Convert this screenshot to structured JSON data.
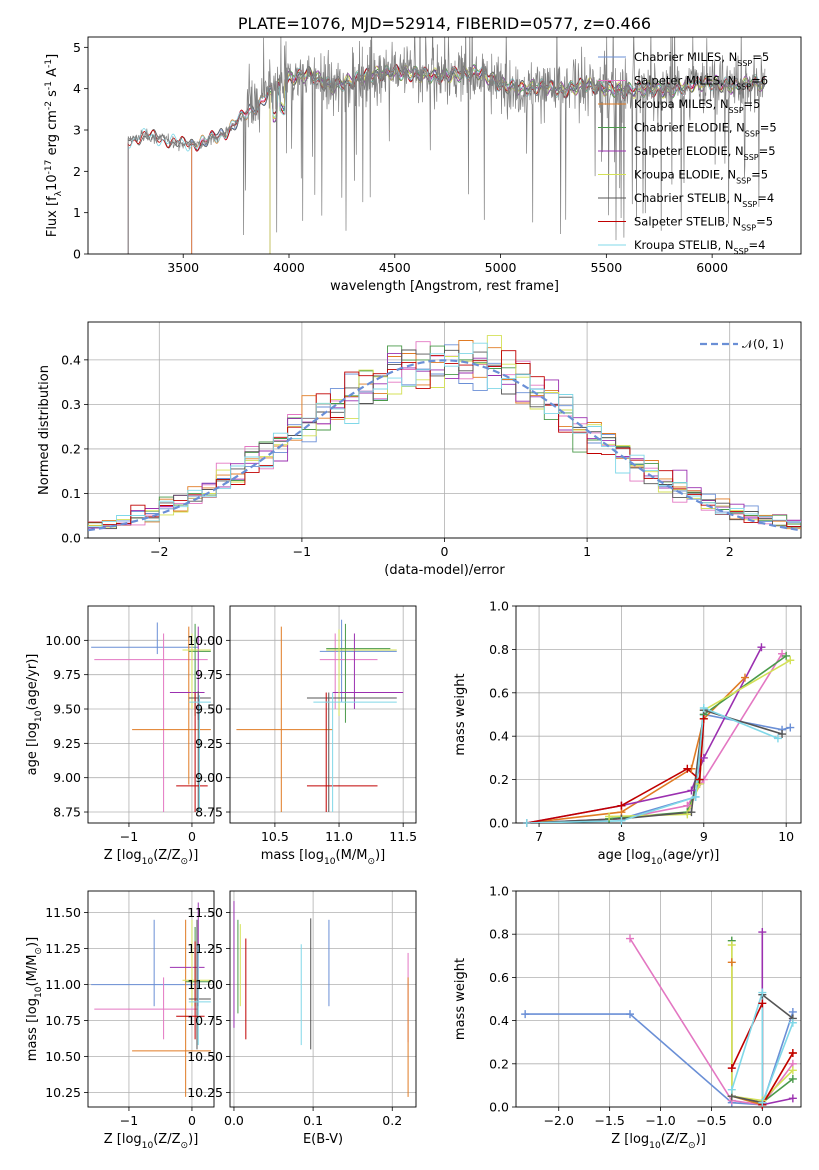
{
  "chart_data": [
    {
      "id": "spectrum",
      "type": "line",
      "title": "PLATE=1076, MJD=52914, FIBERID=0577, z=0.466",
      "xlabel": "wavelength [Angstrom, rest frame]",
      "ylabel": "Flux [f$_\\lambda$10$^{-17}$ erg cm$^{-2}$ s$^{-1}$ A$^{-1}$]",
      "xlim": [
        3050,
        6420
      ],
      "ylim": [
        0,
        5.25
      ],
      "xticks": [
        3500,
        4000,
        4500,
        5000,
        5500,
        6000
      ],
      "yticks": [
        0,
        1,
        2,
        3,
        4,
        5
      ],
      "grid": false,
      "legend_position": "top-right",
      "data_color": "#7f7f7f",
      "continuum": [
        [
          3240,
          2.75
        ],
        [
          3300,
          2.85
        ],
        [
          3400,
          2.8
        ],
        [
          3500,
          2.65
        ],
        [
          3600,
          2.7
        ],
        [
          3700,
          2.95
        ],
        [
          3800,
          3.4
        ],
        [
          3850,
          3.6
        ],
        [
          3900,
          3.85
        ],
        [
          3950,
          4.05
        ],
        [
          4000,
          4.25
        ],
        [
          4100,
          4.35
        ],
        [
          4200,
          4.05
        ],
        [
          4300,
          4.2
        ],
        [
          4400,
          4.35
        ],
        [
          4500,
          4.4
        ],
        [
          4600,
          4.35
        ],
        [
          4700,
          4.3
        ],
        [
          4800,
          4.35
        ],
        [
          4900,
          4.4
        ],
        [
          5000,
          4.1
        ],
        [
          5100,
          4.0
        ],
        [
          5200,
          4.05
        ],
        [
          5300,
          3.95
        ],
        [
          5400,
          4.1
        ],
        [
          5500,
          4.0
        ],
        [
          5600,
          3.95
        ],
        [
          5700,
          4.0
        ],
        [
          5800,
          3.95
        ],
        [
          5900,
          4.1
        ],
        [
          6000,
          4.15
        ],
        [
          6100,
          4.05
        ],
        [
          6200,
          4.15
        ],
        [
          6250,
          4.1
        ]
      ],
      "series": [
        {
          "name": "Chabrier MILES, N$_{SSP}$=5",
          "color": "#6a8fd6",
          "start": 3540
        },
        {
          "name": "Salpeter MILES, N$_{SSP}$=6",
          "color": "#e377c2",
          "start": 3540
        },
        {
          "name": "Kroupa MILES, N$_{SSP}$=5",
          "color": "#e07b24",
          "start": 3540
        },
        {
          "name": "Chabrier ELODIE, N$_{SSP}$=5",
          "color": "#4a9a4a",
          "start": 3910
        },
        {
          "name": "Salpeter ELODIE, N$_{SSP}$=5",
          "color": "#9b30b0",
          "start": 3910
        },
        {
          "name": "Kroupa ELODIE, N$_{SSP}$=5",
          "color": "#d4e157",
          "start": 3910
        },
        {
          "name": "Chabrier STELIB, N$_{SSP}$=4",
          "color": "#555555",
          "start": 3240
        },
        {
          "name": "Salpeter STELIB, N$_{SSP}$=5",
          "color": "#c00000",
          "start": 3240
        },
        {
          "name": "Kroupa STELIB, N$_{SSP}$=4",
          "color": "#80d8e8",
          "start": 3240
        }
      ]
    },
    {
      "id": "residuals",
      "type": "line",
      "xlabel": "(data-model)/error",
      "ylabel": "Normed distribution",
      "xlim": [
        -2.5,
        2.5
      ],
      "ylim": [
        0,
        0.485
      ],
      "xticks": [
        -2,
        -1,
        0,
        1,
        2
      ],
      "yticks": [
        0.0,
        0.1,
        0.2,
        0.3,
        0.4
      ],
      "grid": true,
      "legend_position": "top-right",
      "gaussian": {
        "label": "$\\mathcal{N}(0,1)$",
        "mean": 0,
        "sigma": 1,
        "color": "#6a8fd6"
      },
      "bins": {
        "start": -2.5,
        "width": 0.1,
        "count": 50
      }
    },
    {
      "id": "age-vs-Z",
      "type": "scatter",
      "xlabel": "Z [log$_{10}$(Z/Z$_\\odot$)]",
      "ylabel": "age  [log$_{10}$(age/yr)]",
      "xlim": [
        -1.65,
        0.35
      ],
      "ylim": [
        8.67,
        10.25
      ],
      "xticks": [
        -1,
        0
      ],
      "yticks": [
        8.75,
        9.0,
        9.25,
        9.5,
        9.75,
        10.0
      ],
      "grid": true,
      "points": [
        {
          "x": -0.55,
          "y": 9.95,
          "xlo": -1.6,
          "xhi": 0.1,
          "ylo": 9.9,
          "yhi": 10.13
        },
        {
          "x": -0.45,
          "y": 9.86,
          "xlo": -1.55,
          "xhi": 0.25,
          "ylo": 8.75,
          "yhi": 10.05
        },
        {
          "x": -0.05,
          "y": 9.35,
          "xlo": -0.95,
          "xhi": 0.3,
          "ylo": 8.95,
          "yhi": 10.1
        },
        {
          "x": 0.05,
          "y": 9.92,
          "xlo": -0.05,
          "xhi": 0.3,
          "ylo": 9.45,
          "yhi": 10.12
        },
        {
          "x": 0.1,
          "y": 9.62,
          "xlo": -0.35,
          "xhi": 0.2,
          "ylo": 9.42,
          "yhi": 10.1
        },
        {
          "x": 0.0,
          "y": 9.93,
          "xlo": -0.15,
          "xhi": 0.3,
          "ylo": 9.5,
          "yhi": 10.05
        },
        {
          "x": 0.1,
          "y": 9.58,
          "xlo": -0.05,
          "xhi": 0.3,
          "ylo": 8.75,
          "yhi": 9.63
        },
        {
          "x": 0.05,
          "y": 8.94,
          "xlo": -0.25,
          "xhi": 0.25,
          "ylo": 8.75,
          "yhi": 9.62
        },
        {
          "x": 0.12,
          "y": 9.55,
          "xlo": -0.05,
          "xhi": 0.3,
          "ylo": 8.75,
          "yhi": 9.6
        }
      ]
    },
    {
      "id": "age-vs-mass",
      "type": "scatter",
      "xlabel": "mass [log$_{10}$(M/M$_\\odot$)]",
      "ylabel": "",
      "xlim": [
        10.15,
        11.6
      ],
      "ylim": [
        8.67,
        10.25
      ],
      "xticks": [
        10.5,
        11.0,
        11.5
      ],
      "yticks": [
        8.75,
        9.0,
        9.25,
        9.5,
        9.75,
        10.0
      ],
      "grid": true,
      "points": [
        {
          "x": 11.02,
          "y": 9.92,
          "xlo": 10.85,
          "xhi": 11.45,
          "ylo": 9.55,
          "yhi": 10.15
        },
        {
          "x": 10.97,
          "y": 9.86,
          "xlo": 10.85,
          "xhi": 11.3,
          "ylo": 9.5,
          "yhi": 10.05
        },
        {
          "x": 10.55,
          "y": 9.35,
          "xlo": 10.2,
          "xhi": 10.95,
          "ylo": 8.75,
          "yhi": 10.1
        },
        {
          "x": 11.05,
          "y": 9.94,
          "xlo": 10.9,
          "xhi": 11.4,
          "ylo": 9.4,
          "yhi": 10.12
        },
        {
          "x": 11.12,
          "y": 9.62,
          "xlo": 10.95,
          "xhi": 11.5,
          "ylo": 9.5,
          "yhi": 10.05
        },
        {
          "x": 11.0,
          "y": 9.93,
          "xlo": 10.9,
          "xhi": 11.45,
          "ylo": 9.45,
          "yhi": 10.08
        },
        {
          "x": 10.92,
          "y": 9.58,
          "xlo": 10.75,
          "xhi": 11.45,
          "ylo": 8.75,
          "yhi": 9.62
        },
        {
          "x": 10.9,
          "y": 8.94,
          "xlo": 10.75,
          "xhi": 11.3,
          "ylo": 8.75,
          "yhi": 9.62
        },
        {
          "x": 10.95,
          "y": 9.55,
          "xlo": 10.8,
          "xhi": 11.45,
          "ylo": 8.75,
          "yhi": 9.62
        }
      ]
    },
    {
      "id": "weight-vs-age",
      "type": "line",
      "xlabel": "age  [log$_{10}$(age/yr)]",
      "ylabel": "mass weight",
      "xlim": [
        6.72,
        10.18
      ],
      "ylim": [
        0,
        1.0
      ],
      "xticks": [
        7,
        8,
        9,
        10
      ],
      "yticks": [
        0.0,
        0.2,
        0.4,
        0.6,
        0.8,
        1.0
      ],
      "grid": true,
      "series": [
        {
          "color": "#6a8fd6",
          "x": [
            6.85,
            8.0,
            8.9,
            9.0,
            9.95,
            10.05
          ],
          "y": [
            0.0,
            0.02,
            0.12,
            0.5,
            0.43,
            0.44
          ]
        },
        {
          "color": "#e377c2",
          "x": [
            6.85,
            8.0,
            8.8,
            9.0,
            9.95
          ],
          "y": [
            0.0,
            0.02,
            0.08,
            0.2,
            0.78
          ]
        },
        {
          "color": "#e07b24",
          "x": [
            6.85,
            8.0,
            8.85,
            9.0,
            9.5
          ],
          "y": [
            0.0,
            0.05,
            0.25,
            0.48,
            0.67
          ]
        },
        {
          "color": "#4a9a4a",
          "x": [
            7.85,
            8.8,
            8.95,
            9.0,
            10.0
          ],
          "y": [
            0.02,
            0.05,
            0.2,
            0.5,
            0.77
          ]
        },
        {
          "color": "#9b30b0",
          "x": [
            6.85,
            8.0,
            8.85,
            9.0,
            9.7
          ],
          "y": [
            0.0,
            0.08,
            0.15,
            0.3,
            0.81
          ]
        },
        {
          "color": "#d4e157",
          "x": [
            7.85,
            8.8,
            8.95,
            9.0,
            10.05
          ],
          "y": [
            0.03,
            0.04,
            0.18,
            0.52,
            0.75
          ]
        },
        {
          "color": "#555555",
          "x": [
            6.85,
            8.0,
            8.85,
            9.0,
            9.95
          ],
          "y": [
            0.0,
            0.02,
            0.05,
            0.52,
            0.41
          ]
        },
        {
          "color": "#c00000",
          "x": [
            6.85,
            8.0,
            8.8,
            8.95,
            9.0
          ],
          "y": [
            0.0,
            0.08,
            0.25,
            0.2,
            0.48
          ]
        },
        {
          "color": "#80d8e8",
          "x": [
            6.85,
            8.0,
            8.9,
            9.0,
            9.9
          ],
          "y": [
            0.0,
            0.01,
            0.12,
            0.53,
            0.39
          ]
        }
      ]
    },
    {
      "id": "mass-vs-Z",
      "type": "scatter",
      "xlabel": "Z [log$_{10}$(Z/Z$_\\odot$)]",
      "ylabel": "mass [log$_{10}$(M/M$_\\odot$)]",
      "xlim": [
        -1.65,
        0.35
      ],
      "ylim": [
        10.15,
        11.65
      ],
      "xticks": [
        -1,
        0
      ],
      "yticks": [
        10.25,
        10.5,
        10.75,
        11.0,
        11.25,
        11.5
      ],
      "grid": true,
      "points": [
        {
          "x": -0.6,
          "y": 11.0,
          "xlo": -1.6,
          "xhi": 0.05,
          "ylo": 10.85,
          "yhi": 11.45
        },
        {
          "x": -0.45,
          "y": 10.83,
          "xlo": -1.55,
          "xhi": 0.1,
          "ylo": 10.62,
          "yhi": 11.05
        },
        {
          "x": -0.1,
          "y": 10.54,
          "xlo": -0.95,
          "xhi": 0.3,
          "ylo": 10.22,
          "yhi": 11.45
        },
        {
          "x": 0.05,
          "y": 11.02,
          "xlo": -0.1,
          "xhi": 0.3,
          "ylo": 10.85,
          "yhi": 11.4
        },
        {
          "x": 0.1,
          "y": 11.12,
          "xlo": -0.35,
          "xhi": 0.2,
          "ylo": 10.85,
          "yhi": 11.57
        },
        {
          "x": 0.0,
          "y": 11.03,
          "xlo": -0.15,
          "xhi": 0.3,
          "ylo": 10.85,
          "yhi": 11.45
        },
        {
          "x": 0.08,
          "y": 10.9,
          "xlo": -0.05,
          "xhi": 0.3,
          "ylo": 10.55,
          "yhi": 11.45
        },
        {
          "x": 0.05,
          "y": 10.78,
          "xlo": -0.25,
          "xhi": 0.2,
          "ylo": 10.62,
          "yhi": 11.3
        },
        {
          "x": 0.1,
          "y": 10.88,
          "xlo": -0.05,
          "xhi": 0.3,
          "ylo": 10.58,
          "yhi": 11.28
        }
      ]
    },
    {
      "id": "mass-vs-EBV",
      "type": "scatter",
      "xlabel": "E(B-V)",
      "ylabel": "",
      "xlim": [
        -0.005,
        0.23
      ],
      "ylim": [
        10.15,
        11.65
      ],
      "xticks": [
        0.0,
        0.1,
        0.2
      ],
      "yticks": [
        10.25,
        10.5,
        10.75,
        11.0,
        11.25,
        11.5
      ],
      "grid": true,
      "points": [
        {
          "x": 0.12,
          "y": 11.0,
          "ylo": 10.85,
          "yhi": 11.45
        },
        {
          "x": 0.22,
          "y": 10.83,
          "ylo": 10.6,
          "yhi": 11.22
        },
        {
          "x": 0.22,
          "y": 10.54,
          "ylo": 10.22,
          "yhi": 11.05
        },
        {
          "x": 0.005,
          "y": 11.02,
          "ylo": 10.8,
          "yhi": 11.45
        },
        {
          "x": 0.0,
          "y": 11.12,
          "ylo": 10.7,
          "yhi": 11.58
        },
        {
          "x": 0.008,
          "y": 11.03,
          "ylo": 10.85,
          "yhi": 11.42
        },
        {
          "x": 0.097,
          "y": 10.9,
          "ylo": 10.55,
          "yhi": 11.46
        },
        {
          "x": 0.015,
          "y": 10.78,
          "ylo": 10.62,
          "yhi": 11.32
        },
        {
          "x": 0.085,
          "y": 10.88,
          "ylo": 10.58,
          "yhi": 11.28
        }
      ]
    },
    {
      "id": "weight-vs-Z",
      "type": "line",
      "xlabel": "Z [log$_{10}$(Z/Z$_\\odot$)]",
      "ylabel": "mass weight",
      "xlim": [
        -2.42,
        0.38
      ],
      "ylim": [
        0,
        1.0
      ],
      "xticks": [
        -2.0,
        -1.5,
        -1.0,
        -0.5,
        0.0
      ],
      "yticks": [
        0.0,
        0.2,
        0.4,
        0.6,
        0.8,
        1.0
      ],
      "grid": true,
      "series": [
        {
          "color": "#6a8fd6",
          "x": [
            -2.33,
            -1.3,
            -0.3,
            0.0,
            0.3
          ],
          "y": [
            0.43,
            0.43,
            0.02,
            0.01,
            0.44
          ]
        },
        {
          "color": "#e377c2",
          "x": [
            -1.3,
            -0.3,
            0.0,
            0.3
          ],
          "y": [
            0.78,
            0.03,
            0.01,
            0.2
          ]
        },
        {
          "color": "#e07b24",
          "x": [
            -0.3,
            -0.3,
            0.0,
            0.3
          ],
          "y": [
            0.67,
            0.05,
            0.01,
            0.25
          ]
        },
        {
          "color": "#4a9a4a",
          "x": [
            -0.3,
            -0.3,
            0.0,
            0.3
          ],
          "y": [
            0.77,
            0.05,
            0.02,
            0.13
          ]
        },
        {
          "color": "#9b30b0",
          "x": [
            0.0,
            0.0,
            0.3
          ],
          "y": [
            0.81,
            0.01,
            0.04
          ]
        },
        {
          "color": "#d4e157",
          "x": [
            -0.3,
            -0.3,
            0.0,
            0.3
          ],
          "y": [
            0.75,
            0.05,
            0.03,
            0.17
          ]
        },
        {
          "color": "#555555",
          "x": [
            -0.3,
            0.0,
            0.0,
            0.3
          ],
          "y": [
            0.05,
            0.02,
            0.52,
            0.41
          ]
        },
        {
          "color": "#c00000",
          "x": [
            -0.3,
            0.0,
            0.0,
            0.3
          ],
          "y": [
            0.18,
            0.48,
            0.01,
            0.25
          ]
        },
        {
          "color": "#80d8e8",
          "x": [
            -0.3,
            0.0,
            0.0,
            0.3
          ],
          "y": [
            0.08,
            0.53,
            0.02,
            0.39
          ]
        }
      ]
    }
  ]
}
